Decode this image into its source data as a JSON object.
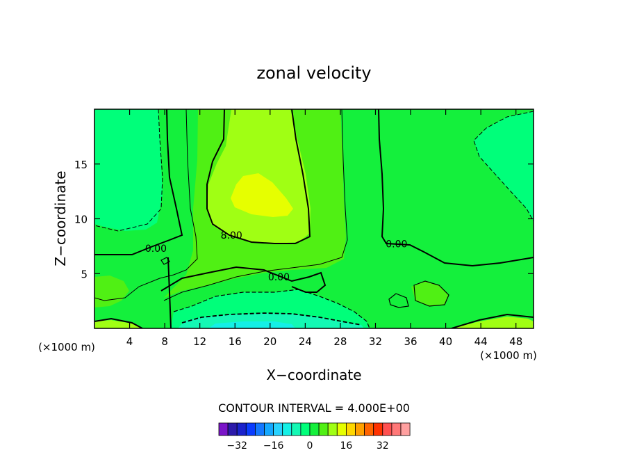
{
  "chart_data": {
    "type": "heatmap",
    "title": "zonal velocity",
    "xlabel": "X−coordinate",
    "ylabel": "Z−coordinate",
    "x_unit_left": "(×1000 m)",
    "x_unit_right": "(×1000 m)",
    "xlim": [
      0,
      50
    ],
    "ylim": [
      0,
      20
    ],
    "x_ticks": [
      4,
      8,
      12,
      16,
      20,
      24,
      28,
      32,
      36,
      40,
      44,
      48
    ],
    "y_ticks": [
      5,
      10,
      15
    ],
    "contour_interval_text": "CONTOUR INTERVAL = 4.000E+00",
    "contour_interval": 4,
    "contour_labels": [
      {
        "text": "0.00",
        "x": 7,
        "z": 7.3
      },
      {
        "text": "8.00",
        "x": 15.6,
        "z": 8.5
      },
      {
        "text": "0.00",
        "x": 21,
        "z": 4.7
      },
      {
        "text": "0.00",
        "x": 34.4,
        "z": 7.7
      }
    ],
    "regions": [
      {
        "level": 4,
        "desc": "background, x 0-50, z 0-20"
      },
      {
        "level": 0,
        "desc": "left edge x 0-7, z 8-20"
      },
      {
        "level": 0,
        "desc": "right edge x 43-50, z 9-20"
      },
      {
        "level": 8,
        "desc": "central column x 11-28, z 3-20"
      },
      {
        "level": 12,
        "desc": "upper core x 14-24, z 7-20"
      },
      {
        "level": 16,
        "desc": "maximum x 16-22.5, z 10.5-13.5"
      },
      {
        "level": -4,
        "desc": "near surface x 9-31, z 0-3"
      },
      {
        "level": -8,
        "desc": "near surface x 10-31, z 0-1.3"
      },
      {
        "level": -12,
        "desc": "near surface x 13-25, z 0-0.5"
      }
    ],
    "colorbar": {
      "levels": [
        -36,
        -32,
        -28,
        -24,
        -20,
        -16,
        -12,
        -8,
        -4,
        0,
        4,
        8,
        12,
        16,
        20,
        24,
        28,
        32,
        36
      ],
      "colors": [
        "#7a14c8",
        "#2c1aaa",
        "#1a22cc",
        "#0a3cff",
        "#1478ff",
        "#14a8ff",
        "#28d2ff",
        "#14f0e6",
        "#14f8b4",
        "#00ff7a",
        "#14f03c",
        "#50f014",
        "#a0ff14",
        "#e6ff00",
        "#ffd700",
        "#ffa000",
        "#ff6400",
        "#ff3200",
        "#ff5050",
        "#ff7878",
        "#ffa0a0"
      ],
      "tick_labels": [
        -32,
        -16,
        0,
        16,
        32
      ]
    }
  }
}
